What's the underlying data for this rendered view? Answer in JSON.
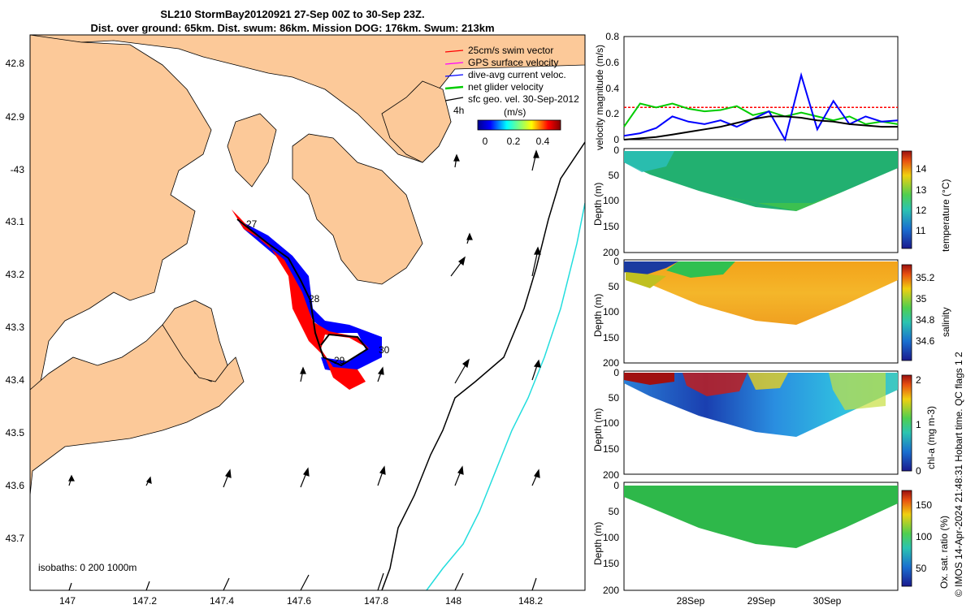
{
  "title_line1": "SL210 StormBay20120921 27-Sep 00Z to 30-Sep 23Z.",
  "title_line2": "Dist. over ground: 65km. Dist. swum: 86km. Mission DOG: 176km. Swum: 213km",
  "map": {
    "lat_ticks": [
      "42.8",
      "42.9",
      "-43",
      "43.1",
      "43.2",
      "43.3",
      "43.4",
      "43.5",
      "43.6",
      "43.7"
    ],
    "lon_ticks": [
      "147",
      "147.2",
      "147.4",
      "147.6",
      "147.8",
      "148",
      "148.2"
    ],
    "day_labels": [
      "27",
      "28",
      "29",
      "30"
    ],
    "isobath_text": "isobaths: 0   200  1000m",
    "legend": [
      {
        "label": "25cm/s swim vector",
        "color": "#ff0000"
      },
      {
        "label": "GPS surface velocity",
        "color": "#ff00ff"
      },
      {
        "label": "dive-avg current veloc.",
        "color": "#0000ff"
      },
      {
        "label": "net glider velocity",
        "color": "#00cc00"
      },
      {
        "label": "sfc geo. vel. 30-Sep-2012",
        "color": "#000000"
      }
    ],
    "legend_extra": "4h",
    "colorbar_title": "(m/s)",
    "colorbar_ticks": [
      "0",
      "0.2",
      "0.4"
    ],
    "land_color": "#fcc999",
    "isobath_200_color": "#000000",
    "isobath_1000_color": "#22dddd"
  },
  "chart_data": [
    {
      "type": "line",
      "title": "",
      "xlabel": "",
      "ylabel": "velocity magnitude (m/s)",
      "ylim": [
        0,
        0.8
      ],
      "yticks": [
        "0",
        "0.2",
        "0.4",
        "0.6",
        "0.8"
      ],
      "series": [
        {
          "name": "25cm/s swim vector",
          "color": "#ff0000",
          "values": [
            0.25,
            0.25
          ]
        },
        {
          "name": "net glider velocity",
          "color": "#00cc00",
          "values": [
            0.1,
            0.28,
            0.25,
            0.28,
            0.24,
            0.22,
            0.23,
            0.26,
            0.19,
            0.22,
            0.18,
            0.21,
            0.18,
            0.15,
            0.18,
            0.12,
            0.14,
            0.12
          ]
        },
        {
          "name": "dive-avg current veloc.",
          "color": "#0000ff",
          "values": [
            0.03,
            0.05,
            0.09,
            0.18,
            0.14,
            0.12,
            0.15,
            0.1,
            0.16,
            0.22,
            0.0,
            0.5,
            0.08,
            0.3,
            0.12,
            0.18,
            0.14,
            0.15
          ]
        },
        {
          "name": "",
          "color": "#000000",
          "values": [
            0.0,
            0.01,
            0.02,
            0.04,
            0.06,
            0.08,
            0.1,
            0.13,
            0.16,
            0.18,
            0.18,
            0.17,
            0.15,
            0.14,
            0.12,
            0.11,
            0.1,
            0.1
          ]
        }
      ]
    },
    {
      "type": "heatmap",
      "ylabel": "Depth (m)",
      "yticks": [
        "0",
        "50",
        "100",
        "150",
        "200"
      ],
      "cbar_label": "temperature (°C)",
      "cbar_ticks": [
        "14",
        "13",
        "12",
        "11"
      ]
    },
    {
      "type": "heatmap",
      "ylabel": "Depth (m)",
      "yticks": [
        "0",
        "50",
        "100",
        "150",
        "200"
      ],
      "cbar_label": "salinity",
      "cbar_ticks": [
        "35.2",
        "35",
        "34.8",
        "34.6"
      ]
    },
    {
      "type": "heatmap",
      "ylabel": "Depth (m)",
      "yticks": [
        "0",
        "50",
        "100",
        "150",
        "200"
      ],
      "cbar_label": "chl-a (mg m-3)",
      "cbar_ticks": [
        "2",
        "1",
        "0"
      ]
    },
    {
      "type": "heatmap",
      "ylabel": "Depth (m)",
      "yticks": [
        "0",
        "50",
        "100",
        "150",
        "200"
      ],
      "cbar_label": "Ox. sat. ratio (%)",
      "cbar_ticks": [
        "150",
        "100",
        "50"
      ],
      "xticks": [
        "28Sep",
        "29Sep",
        "30Sep"
      ]
    }
  ],
  "footer": "© IMOS 14-Apr-2024 21:48:31 Hobart time. QC flags 1  2"
}
